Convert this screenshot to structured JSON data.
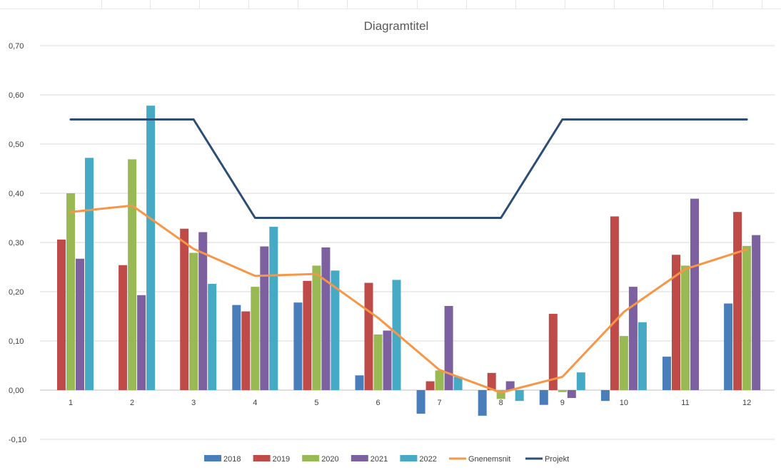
{
  "chart_data": {
    "type": "bar",
    "title": "Diagramtitel",
    "categories": [
      "1",
      "2",
      "3",
      "4",
      "5",
      "6",
      "7",
      "8",
      "9",
      "10",
      "11",
      "12"
    ],
    "y_ticks": [
      "-0,10",
      "0,00",
      "0,10",
      "0,20",
      "0,30",
      "0,40",
      "0,50",
      "0,60",
      "0,70"
    ],
    "ylim": [
      -0.1,
      0.7
    ],
    "grid": true,
    "legend_position": "bottom",
    "series": [
      {
        "name": "2018",
        "kind": "bar",
        "color": "#4a7ebb",
        "values": [
          null,
          null,
          null,
          0.173,
          0.178,
          0.03,
          -0.048,
          -0.052,
          -0.03,
          -0.022,
          0.068,
          0.176
        ]
      },
      {
        "name": "2019",
        "kind": "bar",
        "color": "#be4b48",
        "values": [
          0.306,
          0.254,
          0.328,
          0.16,
          0.222,
          0.218,
          0.018,
          0.035,
          0.155,
          0.353,
          0.275,
          0.362
        ]
      },
      {
        "name": "2020",
        "kind": "bar",
        "color": "#98b954",
        "values": [
          0.4,
          0.469,
          0.279,
          0.21,
          0.253,
          0.113,
          0.04,
          -0.018,
          -0.004,
          0.11,
          0.253,
          0.293
        ]
      },
      {
        "name": "2021",
        "kind": "bar",
        "color": "#7d60a0",
        "values": [
          0.267,
          0.193,
          0.321,
          0.292,
          0.29,
          0.121,
          0.171,
          0.018,
          -0.016,
          0.21,
          0.389,
          0.315
        ]
      },
      {
        "name": "2022",
        "kind": "bar",
        "color": "#46aac5",
        "values": [
          0.472,
          0.578,
          0.216,
          0.332,
          0.243,
          0.224,
          0.027,
          -0.022,
          0.036,
          0.138,
          null,
          null
        ]
      },
      {
        "name": "Gnenemsnit",
        "kind": "line",
        "color": "#f79646",
        "values": [
          0.362,
          0.375,
          0.287,
          0.232,
          0.236,
          0.147,
          0.041,
          -0.005,
          0.027,
          0.159,
          0.246,
          0.286
        ]
      },
      {
        "name": "Projekt",
        "kind": "line",
        "color": "#2c4d75",
        "values": [
          0.55,
          0.55,
          0.55,
          0.35,
          0.35,
          0.35,
          0.35,
          0.35,
          0.55,
          0.55,
          0.55,
          0.55
        ]
      }
    ]
  }
}
